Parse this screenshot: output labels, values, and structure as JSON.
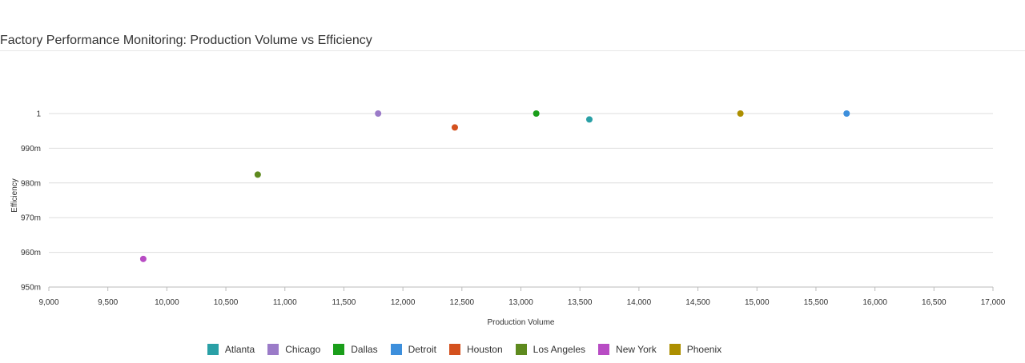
{
  "chart_data": {
    "type": "scatter",
    "title": "Factory Performance Monitoring: Production Volume vs Efficiency",
    "xlabel": "Production Volume",
    "ylabel": "Efficiency",
    "xlim": [
      9000,
      17000
    ],
    "ylim": [
      0.95,
      1.0
    ],
    "x_ticks": [
      9000,
      9500,
      10000,
      10500,
      11000,
      11500,
      12000,
      12500,
      13000,
      13500,
      14000,
      14500,
      15000,
      15500,
      16000,
      16500,
      17000
    ],
    "x_tick_labels": [
      "9,000",
      "9,500",
      "10,000",
      "10,500",
      "11,000",
      "11,500",
      "12,000",
      "12,500",
      "13,000",
      "13,500",
      "14,000",
      "14,500",
      "15,000",
      "15,500",
      "16,000",
      "16,500",
      "17,000"
    ],
    "y_ticks": [
      0.95,
      0.96,
      0.97,
      0.98,
      0.99,
      1.0
    ],
    "y_tick_labels": [
      "950m",
      "960m",
      "970m",
      "980m",
      "990m",
      "1"
    ],
    "grid": true,
    "legend_position": "bottom",
    "series": [
      {
        "name": "Atlanta",
        "color": "#2aa0a6",
        "x": 13580,
        "y": 0.9983
      },
      {
        "name": "Chicago",
        "color": "#9b7bc8",
        "x": 11790,
        "y": 1.0
      },
      {
        "name": "Dallas",
        "color": "#1a9e1a",
        "x": 13130,
        "y": 1.0
      },
      {
        "name": "Detroit",
        "color": "#3d8fdc",
        "x": 15760,
        "y": 1.0
      },
      {
        "name": "Houston",
        "color": "#d4511e",
        "x": 12440,
        "y": 0.996
      },
      {
        "name": "Los Angeles",
        "color": "#5e8a1e",
        "x": 10770,
        "y": 0.9824
      },
      {
        "name": "New York",
        "color": "#b84cc4",
        "x": 9800,
        "y": 0.9581
      },
      {
        "name": "Phoenix",
        "color": "#ad8f00",
        "x": 14860,
        "y": 1.0
      }
    ]
  }
}
